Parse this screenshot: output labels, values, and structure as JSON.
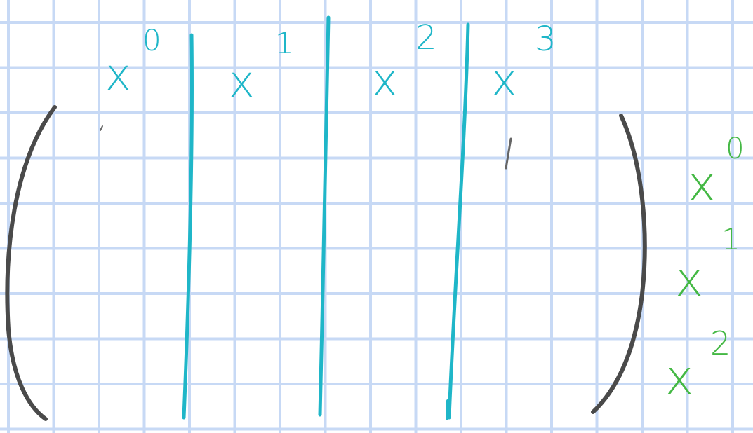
{
  "colors": {
    "grid": "#c7d9f5",
    "teal_ink": "#1fb6c8",
    "green_ink": "#44b844",
    "bracket_ink": "#4a4a4a"
  },
  "column_labels": [
    {
      "base": "x",
      "exp": "0"
    },
    {
      "base": "x",
      "exp": "1"
    },
    {
      "base": "x",
      "exp": "2"
    },
    {
      "base": "x",
      "exp": "3"
    }
  ],
  "row_labels": [
    {
      "base": "x",
      "exp": "0"
    },
    {
      "base": "x",
      "exp": "1"
    },
    {
      "base": "x",
      "exp": "2"
    }
  ]
}
